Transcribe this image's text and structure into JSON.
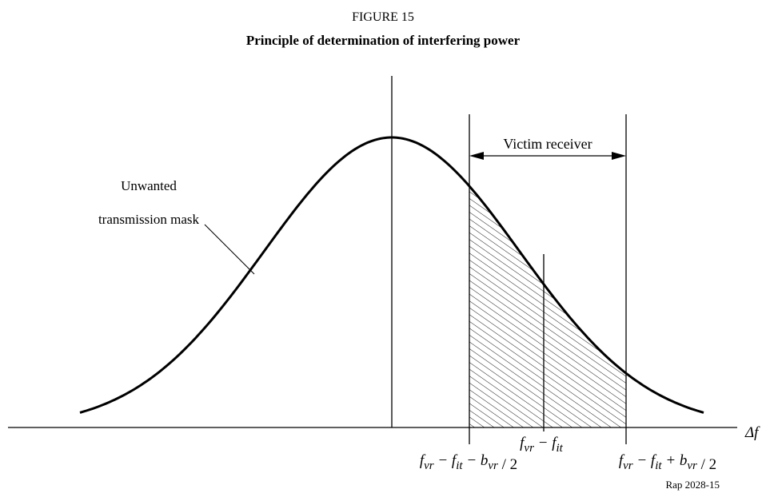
{
  "figure": {
    "number": "FIGURE 15",
    "title": "Principle of determination of interfering power"
  },
  "annotations": {
    "victim": "Victim receiver",
    "mask_line1": "Unwanted",
    "mask_line2": "transmission mask",
    "axis": "Δf",
    "ref": "Rap 2028-15"
  },
  "labels": [
    [
      {
        "main": "f",
        "sub": "vr"
      },
      {
        "main": " − f",
        "sub": "it"
      },
      {
        "main": " − b",
        "sub": "vr"
      },
      {
        "main": " / 2"
      }
    ],
    [
      {
        "main": "f",
        "sub": "vr"
      },
      {
        "main": " − f",
        "sub": "it"
      }
    ],
    [
      {
        "main": "f",
        "sub": "vr"
      },
      {
        "main": " − f",
        "sub": "it"
      },
      {
        "main": " + b",
        "sub": "vr"
      },
      {
        "main": " / 2"
      }
    ]
  ]
}
